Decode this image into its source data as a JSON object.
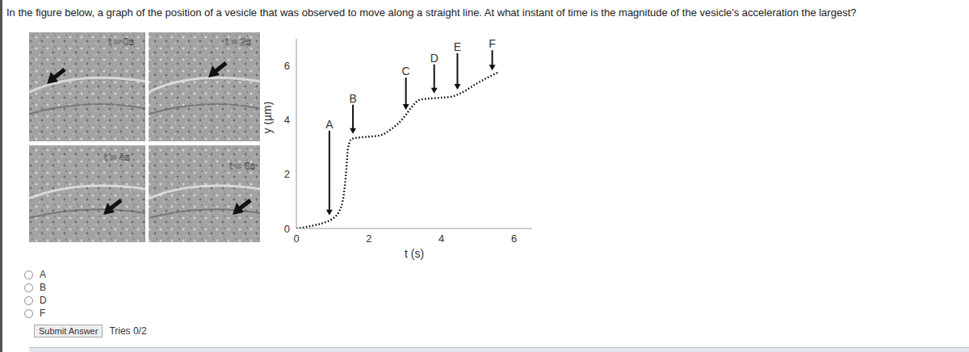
{
  "question": "In the figure below, a graph of the position of a vesicle that was observed to move along a straight line. At what instant of time is the magnitude of the vesicle's acceleration the largest?",
  "frames": [
    "t = 0s",
    "t = 2s",
    "t = 4s",
    "t = 6s"
  ],
  "chart_data": {
    "type": "line",
    "x_label": "t (s)",
    "y_label": "y (µm)",
    "x": [
      0,
      0.4,
      0.73,
      0.96,
      1.18,
      1.31,
      1.38,
      1.42,
      1.53,
      1.84,
      2.29,
      2.62,
      2.96,
      3.18,
      3.4,
      3.84,
      4.29,
      4.56,
      4.96,
      5.29,
      5.56
    ],
    "values": [
      0,
      0.09,
      0.2,
      0.33,
      0.63,
      1.28,
      2.18,
      2.93,
      3.31,
      3.37,
      3.43,
      3.67,
      4.09,
      4.48,
      4.75,
      4.81,
      4.87,
      5.01,
      5.34,
      5.58,
      5.76
    ],
    "xlim": [
      0,
      6.5
    ],
    "ylim": [
      0,
      7
    ],
    "xticks": [
      0,
      2,
      4,
      6
    ],
    "yticks": [
      0,
      2,
      4,
      6
    ],
    "line_style": "dotted",
    "color": "#000000",
    "annotations": [
      {
        "label": "A",
        "x": 0.91
      },
      {
        "label": "B",
        "x": 1.56
      },
      {
        "label": "C",
        "x": 3.02
      },
      {
        "label": "D",
        "x": 3.8
      },
      {
        "label": "E",
        "x": 4.44
      },
      {
        "label": "F",
        "x": 5.4
      }
    ]
  },
  "options": [
    "A",
    "B",
    "D",
    "F"
  ],
  "submit": "Submit Answer",
  "tries": "Tries 0/2"
}
